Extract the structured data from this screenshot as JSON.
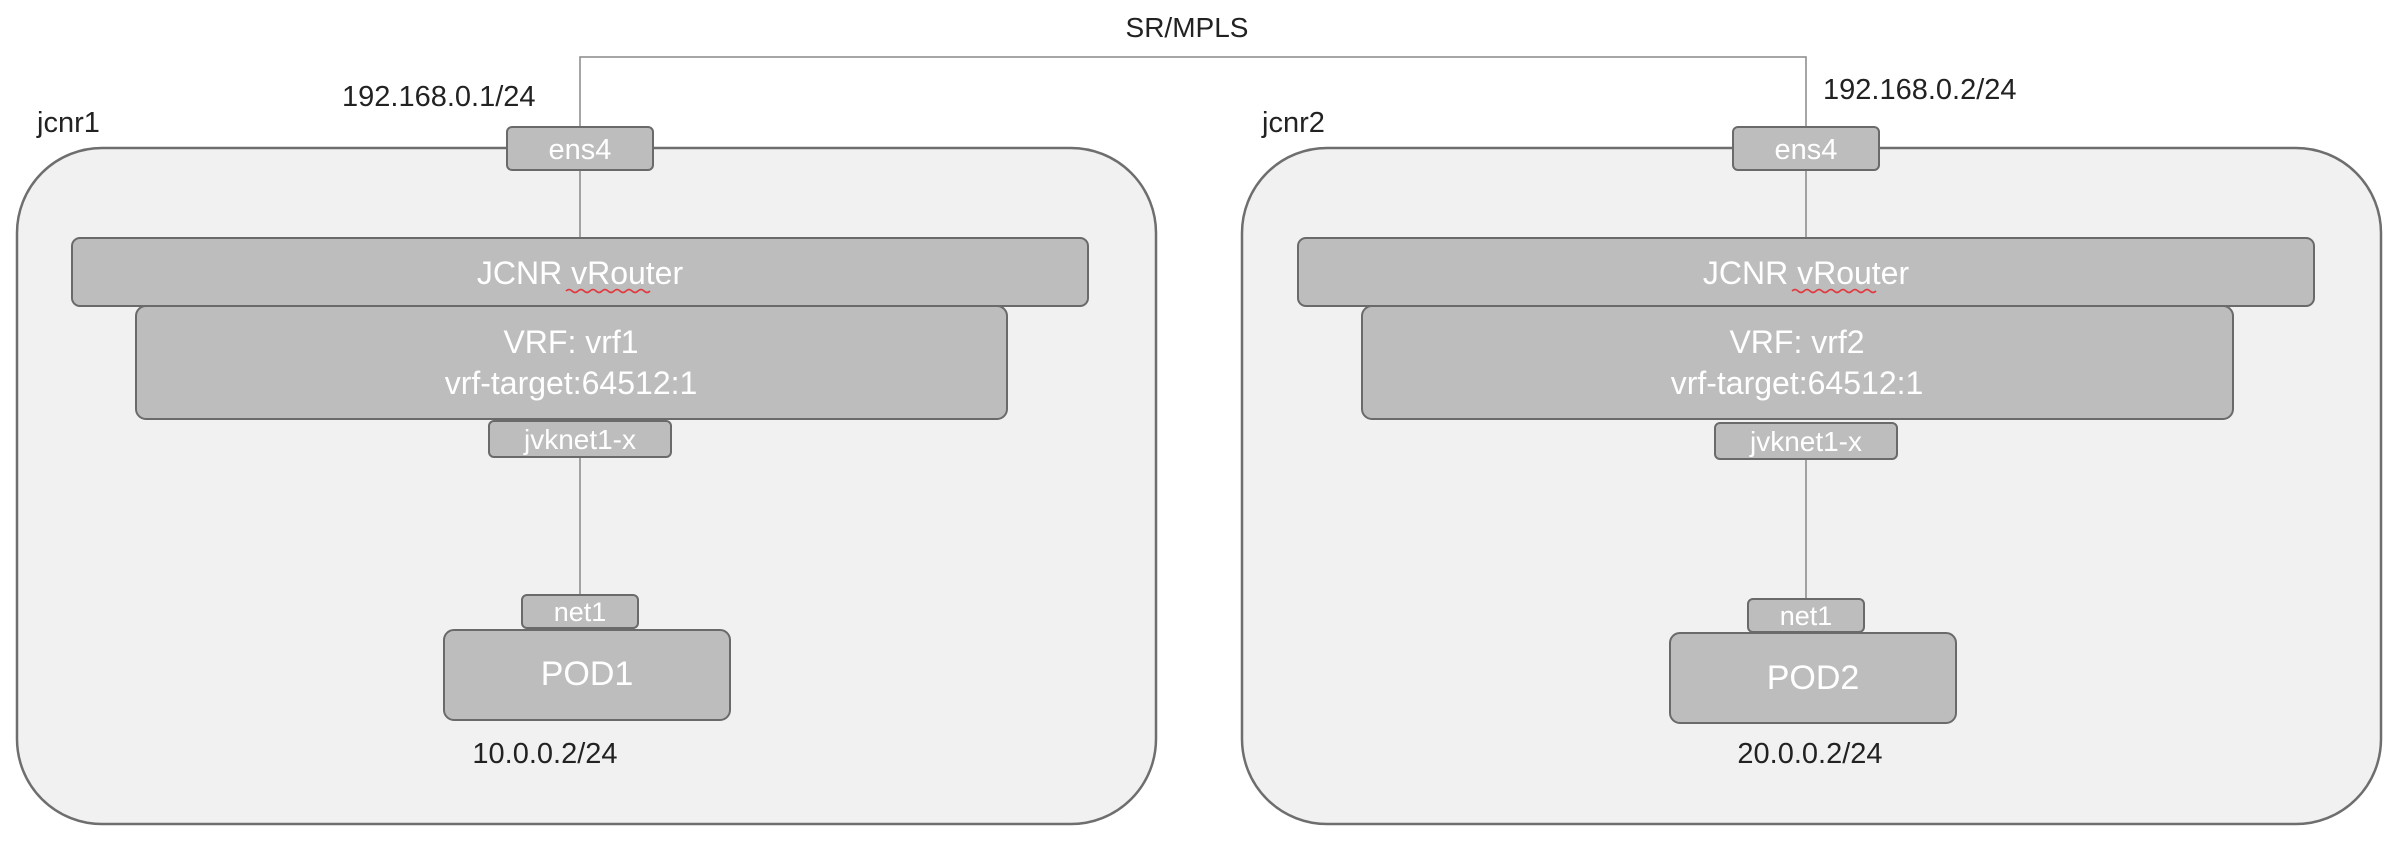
{
  "link_label": "SR/MPLS",
  "nodes": [
    {
      "name": "jcnr1",
      "uplink_ip": "192.168.0.1/24",
      "uplink_iface": "ens4",
      "vrouter_label": "JCNR vRouter",
      "vrf_line1": "VRF: vrf1",
      "vrf_line2": "vrf-target:64512:1",
      "vrf_iface": "jvknet1-x",
      "pod_iface": "net1",
      "pod_label": "POD1",
      "pod_ip": "10.0.0.2/24"
    },
    {
      "name": "jcnr2",
      "uplink_ip": "192.168.0.2/24",
      "uplink_iface": "ens4",
      "vrouter_label": "JCNR vRouter",
      "vrf_line1": "VRF: vrf2",
      "vrf_line2": "vrf-target:64512:1",
      "vrf_iface": "jvknet1-x",
      "pod_iface": "net1",
      "pod_label": "POD2",
      "pod_ip": "20.0.0.2/24"
    }
  ],
  "colors": {
    "node_fill": "#f1f1f1",
    "node_stroke": "#6e6e6e",
    "component_fill": "#bdbdbd",
    "component_stroke": "#6a6a6a",
    "link_stroke": "#888888",
    "dark_text": "#222222",
    "light_text": "#ffffff",
    "spell_underline": "#e0393e"
  }
}
